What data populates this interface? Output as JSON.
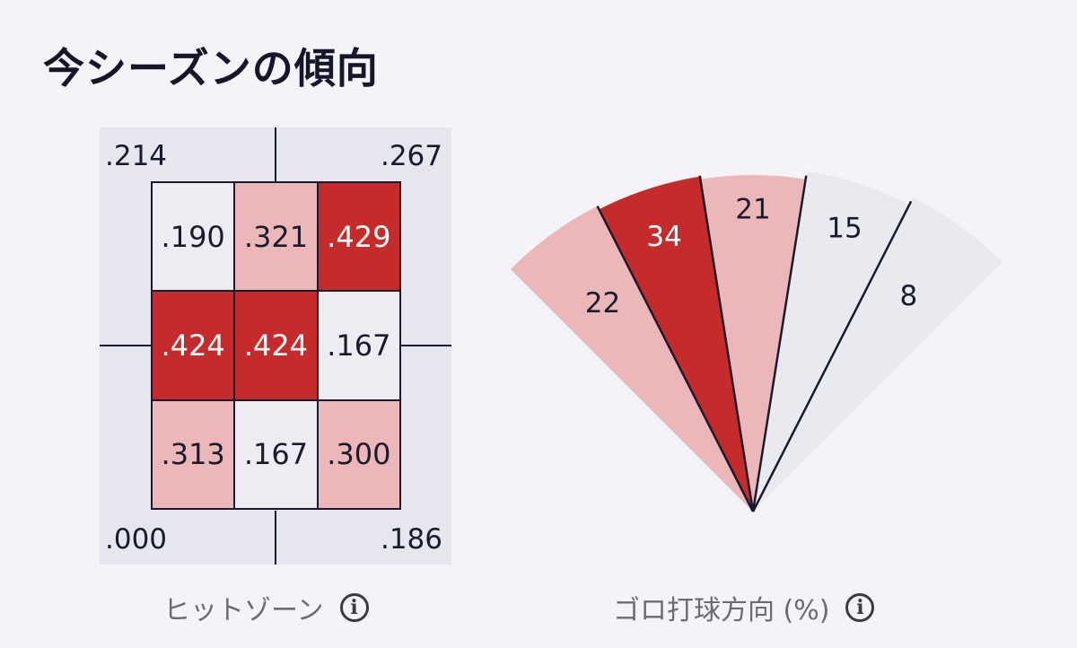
{
  "title": "今シーズンの傾向",
  "hit_zone": {
    "caption": "ヒットゾーン",
    "corners": {
      "top_left": ".214",
      "top_right": ".267",
      "bottom_left": ".000",
      "bottom_right": ".186"
    },
    "cells": [
      {
        "value": ".190",
        "level": "low"
      },
      {
        "value": ".321",
        "level": "mid"
      },
      {
        "value": ".429",
        "level": "high"
      },
      {
        "value": ".424",
        "level": "high"
      },
      {
        "value": ".424",
        "level": "high"
      },
      {
        "value": ".167",
        "level": "low"
      },
      {
        "value": ".313",
        "level": "mid"
      },
      {
        "value": ".167",
        "level": "low"
      },
      {
        "value": ".300",
        "level": "mid"
      }
    ]
  },
  "grounder_direction": {
    "caption": "ゴロ打球方向 (%)",
    "segments": [
      {
        "value": "22",
        "level": "mid"
      },
      {
        "value": "34",
        "level": "high"
      },
      {
        "value": "21",
        "level": "mid"
      },
      {
        "value": "15",
        "level": "low"
      },
      {
        "value": "8",
        "level": "low"
      }
    ]
  },
  "colors": {
    "low": "#e9e9f0",
    "mid": "#ecb7b9",
    "high": "#c52b2a",
    "line": "#1a1a2e"
  },
  "icons": {
    "info": "info-icon",
    "info_glyph": "i"
  }
}
